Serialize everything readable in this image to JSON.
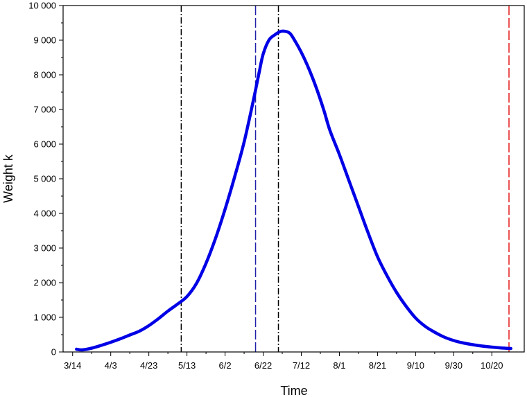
{
  "chart_data": {
    "type": "line",
    "xlabel": "Time",
    "ylabel": "Weight k",
    "x_ticks": [
      "3/14",
      "4/3",
      "4/23",
      "5/13",
      "6/2",
      "6/22",
      "7/12",
      "8/1",
      "8/21",
      "9/10",
      "9/30",
      "10/20"
    ],
    "x_range": [
      "3/9",
      "11/6"
    ],
    "ylim": [
      0,
      10000
    ],
    "y_ticks": [
      "0",
      "1 000",
      "2 000",
      "3 000",
      "4 000",
      "5 000",
      "6 000",
      "7 000",
      "8 000",
      "9 000",
      "10 000"
    ],
    "grid": false,
    "series": [
      {
        "color": "#0000e6",
        "x": [
          "3/16",
          "3/19",
          "3/24",
          "3/29",
          "4/3",
          "4/8",
          "4/13",
          "4/18",
          "4/23",
          "4/28",
          "5/3",
          "5/8",
          "5/13",
          "5/18",
          "5/23",
          "5/28",
          "6/2",
          "6/7",
          "6/12",
          "6/17",
          "6/20",
          "6/22",
          "6/25",
          "6/28",
          "7/1",
          "7/3",
          "7/6",
          "7/9",
          "7/12",
          "7/15",
          "7/18",
          "7/21",
          "7/24",
          "7/27",
          "8/1",
          "8/6",
          "8/11",
          "8/16",
          "8/21",
          "8/26",
          "8/31",
          "9/5",
          "9/10",
          "9/15",
          "9/20",
          "9/25",
          "9/30",
          "10/5",
          "10/10",
          "10/15",
          "10/20",
          "10/25",
          "10/30"
        ],
        "values": [
          80,
          60,
          110,
          190,
          280,
          380,
          490,
          600,
          760,
          960,
          1180,
          1380,
          1600,
          1980,
          2560,
          3280,
          4120,
          5050,
          6060,
          7300,
          8100,
          8600,
          9000,
          9150,
          9250,
          9260,
          9200,
          8950,
          8650,
          8300,
          7900,
          7450,
          6950,
          6400,
          5700,
          4950,
          4200,
          3450,
          2750,
          2200,
          1720,
          1320,
          980,
          740,
          570,
          430,
          330,
          260,
          210,
          170,
          140,
          115,
          100
        ]
      }
    ],
    "reference_lines": [
      {
        "x": "5/10",
        "style": "dash-dot",
        "color": "#000000"
      },
      {
        "x": "6/18",
        "style": "dashed",
        "color": "#1f1fa8"
      },
      {
        "x": "6/30",
        "style": "dash-dot",
        "color": "#000000"
      },
      {
        "x": "10/29",
        "style": "dashed",
        "color": "#e31a1c"
      }
    ]
  }
}
